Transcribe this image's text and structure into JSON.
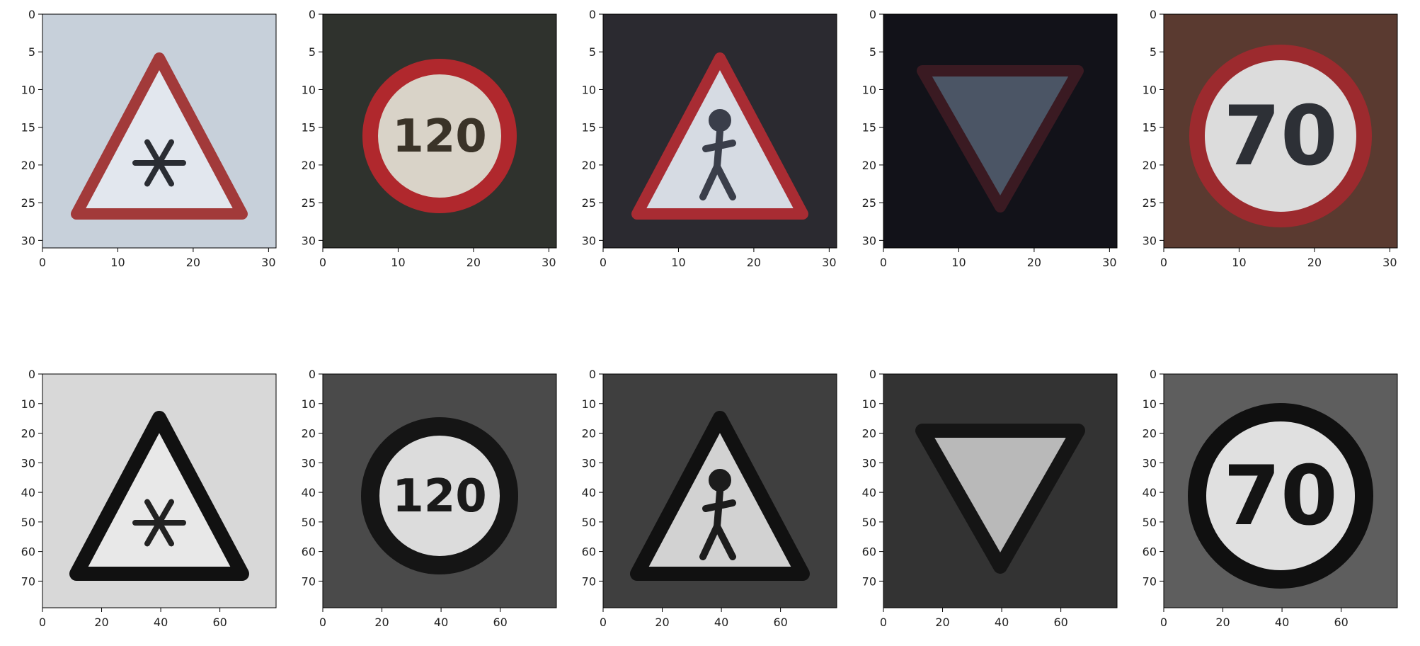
{
  "chart_data": [
    {
      "type": "image",
      "row": 0,
      "col": 0,
      "content": "warning-triangle-snow",
      "colormap": "color",
      "xlim": [
        0,
        31
      ],
      "ylim": [
        31,
        0
      ],
      "xticks": [
        0,
        10,
        20,
        30
      ],
      "yticks": [
        0,
        5,
        10,
        15,
        20,
        25,
        30
      ],
      "palette": {
        "background": "#c7d0da",
        "border": "#a23a3a",
        "fill": "#e2e7ee",
        "symbol": "#2a2d33"
      }
    },
    {
      "type": "image",
      "row": 0,
      "col": 1,
      "content": "speed-limit-120",
      "colormap": "color",
      "xlim": [
        0,
        31
      ],
      "ylim": [
        31,
        0
      ],
      "xticks": [
        0,
        10,
        20,
        30
      ],
      "yticks": [
        0,
        5,
        10,
        15,
        20,
        25,
        30
      ],
      "sign_text": "120",
      "palette": {
        "background": "#2f322d",
        "border": "#b0282d",
        "fill": "#d9d3c8",
        "symbol": "#3a3328"
      }
    },
    {
      "type": "image",
      "row": 0,
      "col": 2,
      "content": "warning-triangle-pedestrian",
      "colormap": "color",
      "xlim": [
        0,
        31
      ],
      "ylim": [
        31,
        0
      ],
      "xticks": [
        0,
        10,
        20,
        30
      ],
      "yticks": [
        0,
        5,
        10,
        15,
        20,
        25,
        30
      ],
      "palette": {
        "background": "#2b2a30",
        "border": "#a82c33",
        "fill": "#d6dbe3",
        "symbol": "#3a3e4a"
      }
    },
    {
      "type": "image",
      "row": 0,
      "col": 3,
      "content": "yield-triangle",
      "colormap": "color",
      "xlim": [
        0,
        31
      ],
      "ylim": [
        31,
        0
      ],
      "xticks": [
        0,
        10,
        20,
        30
      ],
      "yticks": [
        0,
        5,
        10,
        15,
        20,
        25,
        30
      ],
      "palette": {
        "background": "#121219",
        "border": "#3a1a22",
        "fill": "#4b5565",
        "symbol": "#4b5565"
      }
    },
    {
      "type": "image",
      "row": 0,
      "col": 4,
      "content": "speed-limit-70",
      "colormap": "color",
      "xlim": [
        0,
        31
      ],
      "ylim": [
        31,
        0
      ],
      "xticks": [
        0,
        10,
        20,
        30
      ],
      "yticks": [
        0,
        5,
        10,
        15,
        20,
        25,
        30
      ],
      "sign_text": "70",
      "palette": {
        "background": "#5a3a30",
        "border": "#9c2a2e",
        "fill": "#dcdcdc",
        "symbol": "#2d3036"
      }
    },
    {
      "type": "image",
      "row": 1,
      "col": 0,
      "content": "warning-triangle-snow",
      "colormap": "gray",
      "xlim": [
        0,
        79
      ],
      "ylim": [
        79,
        0
      ],
      "xticks": [
        0,
        20,
        40,
        60
      ],
      "yticks": [
        0,
        10,
        20,
        30,
        40,
        50,
        60,
        70
      ],
      "palette": {
        "background": "#d8d8d8",
        "border": "#111111",
        "fill": "#e8e8e8",
        "symbol": "#222222"
      }
    },
    {
      "type": "image",
      "row": 1,
      "col": 1,
      "content": "speed-limit-120",
      "colormap": "gray",
      "xlim": [
        0,
        79
      ],
      "ylim": [
        79,
        0
      ],
      "xticks": [
        0,
        20,
        40,
        60
      ],
      "yticks": [
        0,
        10,
        20,
        30,
        40,
        50,
        60,
        70
      ],
      "sign_text": "120",
      "palette": {
        "background": "#4a4a4a",
        "border": "#151515",
        "fill": "#dcdcdc",
        "symbol": "#1a1a1a"
      }
    },
    {
      "type": "image",
      "row": 1,
      "col": 2,
      "content": "warning-triangle-pedestrian",
      "colormap": "gray",
      "xlim": [
        0,
        79
      ],
      "ylim": [
        79,
        0
      ],
      "xticks": [
        0,
        20,
        40,
        60
      ],
      "yticks": [
        0,
        10,
        20,
        30,
        40,
        50,
        60,
        70
      ],
      "palette": {
        "background": "#3f3f3f",
        "border": "#111111",
        "fill": "#d2d2d2",
        "symbol": "#1c1c1c"
      }
    },
    {
      "type": "image",
      "row": 1,
      "col": 3,
      "content": "yield-triangle",
      "colormap": "gray",
      "xlim": [
        0,
        79
      ],
      "ylim": [
        79,
        0
      ],
      "xticks": [
        0,
        20,
        40,
        60
      ],
      "yticks": [
        0,
        10,
        20,
        30,
        40,
        50,
        60,
        70
      ],
      "palette": {
        "background": "#333333",
        "border": "#151515",
        "fill": "#b9b9b9",
        "symbol": "#b9b9b9"
      }
    },
    {
      "type": "image",
      "row": 1,
      "col": 4,
      "content": "speed-limit-70",
      "colormap": "gray",
      "xlim": [
        0,
        79
      ],
      "ylim": [
        79,
        0
      ],
      "xticks": [
        0,
        20,
        40,
        60
      ],
      "yticks": [
        0,
        10,
        20,
        30,
        40,
        50,
        60,
        70
      ],
      "sign_text": "70",
      "palette": {
        "background": "#5e5e5e",
        "border": "#101010",
        "fill": "#e0e0e0",
        "symbol": "#141414"
      }
    }
  ]
}
